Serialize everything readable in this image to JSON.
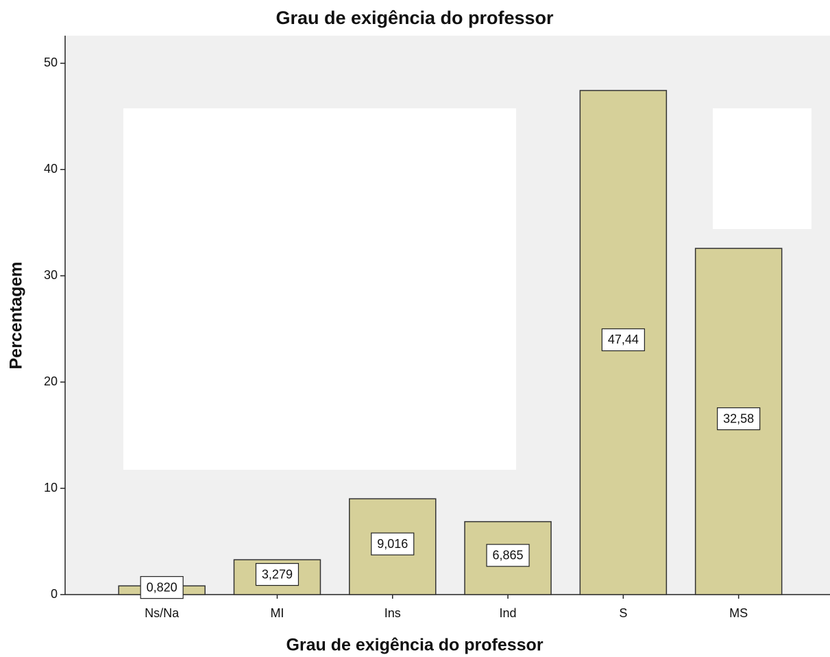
{
  "chart_data": {
    "type": "bar",
    "title": "Grau de exigência do professor",
    "x_label": "Grau de exigência do professor",
    "y_label": "Percentagem",
    "categories": [
      "Ns/Na",
      "MI",
      "Ins",
      "Ind",
      "S",
      "MS"
    ],
    "values": [
      0.82,
      3.279,
      9.016,
      6.865,
      47.44,
      32.58
    ],
    "value_labels": [
      "0,820",
      "3,279",
      "9,016",
      "6,865",
      "47,44",
      "32,58"
    ],
    "color": "#d6d099",
    "ylim": [
      0,
      52.6
    ],
    "yticks": [
      0,
      10,
      20,
      30,
      40,
      50
    ],
    "grid": false
  }
}
